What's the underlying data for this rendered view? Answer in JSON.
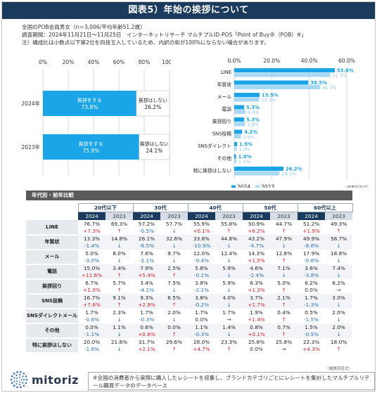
{
  "title": "図表5）年始の挨拶について",
  "notes": [
    "全国のPOB会員男女（n＝3,006/平均年齢51.2歳）",
    "調査期間：2024年11月21日～11月25日　インターネットリサーチ マルチプルID-POS「Point of Buy®（POB）※」",
    "注）構成比は小数点以下第2位を四捨五入しているため、内訳の和が100%にならない場合があります。"
  ],
  "colors": {
    "accent": "#1aa5e8",
    "accent_light": "#a8d8f4",
    "navy": "#1a3a5e",
    "up": "#e0202b",
    "down": "#2a6fc0"
  },
  "chart_data": [
    {
      "type": "bar",
      "orientation": "horizontal-stacked",
      "categories": [
        "2024年",
        "2023年"
      ],
      "series": [
        {
          "name": "挨拶をする",
          "labels": [
            "挨拶をする\n73.8%",
            "挨拶をする\n75.9%"
          ],
          "values": [
            73.8,
            75.9
          ]
        },
        {
          "name": "挨拶はしない",
          "labels": [
            "挨拶はしない\n26.2%",
            "挨拶はしない\n24.1%"
          ],
          "values": [
            26.2,
            24.1
          ]
        }
      ],
      "xlim": [
        0,
        100
      ],
      "xticks": [
        "0%",
        "20%",
        "40%",
        "60%",
        "80%",
        "100%"
      ],
      "grid": true
    },
    {
      "type": "bar",
      "orientation": "horizontal",
      "categories": [
        "LINE",
        "年賀状",
        "メール",
        "電話",
        "挨拶回り",
        "SNS投稿",
        "SNSダイレクト",
        "その他",
        "特に挨拶はしない"
      ],
      "series": [
        {
          "name": "2024",
          "values": [
            53.6,
            39.5,
            13.5,
            5.3,
            5.3,
            4.2,
            1.5,
            1.0,
            26.2
          ],
          "labels": [
            "53.6%",
            "39.5%",
            "13.5%",
            "5.3%",
            "5.3%",
            "4.2%",
            "1.5%",
            "1.0%",
            "26.2%"
          ]
        },
        {
          "name": "2023",
          "values": [
            51.3,
            45.7,
            13.3,
            6.0,
            5.8,
            3.6,
            1.3,
            1.1,
            24.1
          ],
          "labels": [
            "51.3%",
            "45.7%",
            "13.3%",
            "6.0%",
            "5.8%",
            "3.6%",
            "1.3%",
            "1.1%",
            "24.1%"
          ]
        }
      ],
      "xlim": [
        0,
        60
      ],
      "xticks": [
        "0.0%",
        "20.0%",
        "40.0%",
        "60.0%"
      ],
      "legend": "bottom",
      "grid": true,
      "note": "（複数回答式）"
    },
    {
      "type": "table",
      "header": "年代別・前年比較",
      "groups": [
        "20代以下",
        "30代",
        "40代",
        "50代",
        "60代以上"
      ],
      "years": [
        "2024",
        "2023"
      ],
      "rows": [
        {
          "label": "LINE",
          "values": [
            "76.7%",
            "69.3%",
            "57.2%",
            "57.7%",
            "55.9%",
            "55.8%",
            "50.9%",
            "44.7%",
            "51.2%",
            "49.3%"
          ],
          "changes": [
            "+7.3%",
            "↑",
            "-0.5%",
            "↓",
            "+0.1%",
            "↑",
            "+6.2%",
            "↑",
            "+1.9%",
            "↑"
          ]
        },
        {
          "label": "年賀状",
          "values": [
            "13.3%",
            "14.8%",
            "26.1%",
            "32.6%",
            "33.8%",
            "44.8%",
            "43.2%",
            "47.9%",
            "49.9%",
            "58.7%"
          ],
          "changes": [
            "-1.4%",
            "↓",
            "-6.5%",
            "↓",
            "-10.9%",
            "↓",
            "-4.7%",
            "↓",
            "-8.8%",
            "↓"
          ]
        },
        {
          "label": "メール",
          "values": [
            "5.0%",
            "8.0%",
            "7.6%",
            "9.7%",
            "12.0%",
            "12.4%",
            "14.3%",
            "12.8%",
            "17.9%",
            "18.8%"
          ],
          "changes": [
            "-3.0%",
            "↓",
            "-2.1%",
            "↓",
            "-0.4%",
            "↓",
            "+1.5%",
            "↑",
            "-0.8%",
            "↓"
          ]
        },
        {
          "label": "電話",
          "values": [
            "15.0%",
            "3.4%",
            "7.9%",
            "2.5%",
            "5.8%",
            "5.9%",
            "4.6%",
            "7.1%",
            "3.6%",
            "7.4%"
          ],
          "changes": [
            "+11.6%",
            "↑",
            "+5.4%",
            "↑",
            "-0.1%",
            "↓",
            "-2.4%",
            "↓",
            "-3.8%",
            "↓"
          ]
        },
        {
          "label": "挨拶回り",
          "values": [
            "6.7%",
            "5.7%",
            "3.4%",
            "7.5%",
            "3.8%",
            "5.9%",
            "6.3%",
            "5.0%",
            "6.2%",
            "6.2%"
          ],
          "changes": [
            "+1.0%",
            "↑",
            "-4.1%",
            "↓",
            "-2.1%",
            "↓",
            "+1.3%",
            "↑",
            "0.0%",
            "→"
          ]
        },
        {
          "label": "SNS投稿",
          "values": [
            "16.7%",
            "9.1%",
            "9.3%",
            "6.5%",
            "3.8%",
            "4.0%",
            "3.7%",
            "2.1%",
            "1.7%",
            "3.0%"
          ],
          "changes": [
            "+7.6%",
            "↑",
            "+2.9%",
            "↑",
            "-0.2%",
            "↓",
            "+1.7%",
            "↑",
            "-1.3%",
            "↓"
          ]
        },
        {
          "label": "SNSダイレクトメール",
          "values": [
            "1.7%",
            "2.3%",
            "1.7%",
            "2.0%",
            "1.7%",
            "1.7%",
            "1.9%",
            "0.4%",
            "0.5%",
            "2.0%"
          ],
          "changes": [
            "-0.6%",
            "↓",
            "-0.3%",
            "↓",
            "0.0%",
            "→",
            "+1.4%",
            "↑",
            "-1.5%",
            "↓"
          ]
        },
        {
          "label": "その他",
          "values": [
            "0.0%",
            "1.1%",
            "0.6%",
            "0.0%",
            "1.1%",
            "1.4%",
            "0.8%",
            "0.7%",
            "1.5%",
            "2.0%"
          ],
          "changes": [
            "-1.1%",
            "↓",
            "+0.6%",
            "↑",
            "-0.3%",
            "↓",
            "+0.1%",
            "↑",
            "-0.5%",
            "↓"
          ]
        },
        {
          "label": "特に挨拶はしない",
          "values": [
            "20.0%",
            "21.6%",
            "31.7%",
            "29.6%",
            "28.0%",
            "23.3%",
            "25.8%",
            "25.8%",
            "22.3%",
            "18.0%"
          ],
          "changes": [
            "-1.6%",
            "↓",
            "+2.1%",
            "↑",
            "+4.7%",
            "↑",
            "0.0%",
            "→",
            "+4.3%",
            "↑"
          ]
        }
      ],
      "note": "（複数回答式）"
    }
  ],
  "brand": {
    "name": "mitoriz",
    "logo_icon": "dotted-circle-logo-icon"
  },
  "footer_note": "※全国の消費者から実際に購入したレシートを収集し、ブランドカテゴリごとにレシートを集計したマルチプルリテール購買データのデータベース"
}
